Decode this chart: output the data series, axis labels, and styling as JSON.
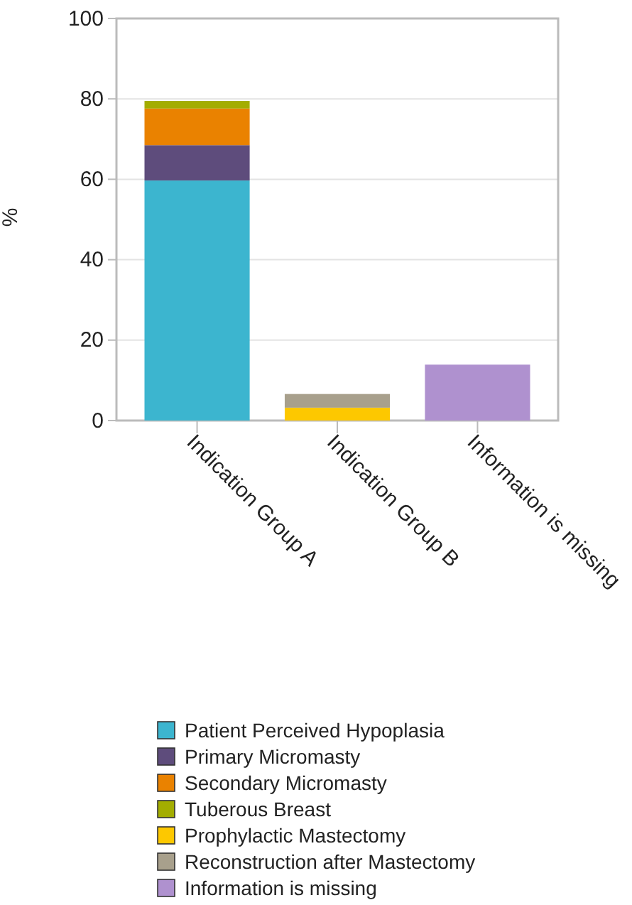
{
  "chart_data": {
    "type": "bar",
    "stacked": true,
    "ylabel": "%",
    "categories": [
      "Indication Group A",
      "Indication Group B",
      "Information is missing"
    ],
    "ylim": [
      0,
      100
    ],
    "yticks": [
      0,
      20,
      40,
      60,
      80,
      100
    ],
    "grid": "y",
    "legend": "bottom",
    "series": [
      {
        "name": "Patient Perceived Hypoplasia",
        "color": "#3cb5cf",
        "values": [
          59.7,
          null,
          null
        ]
      },
      {
        "name": "Primary Micromasty",
        "color": "#5e4c7c",
        "values": [
          8.8,
          null,
          null
        ]
      },
      {
        "name": "Secondary Micromasty",
        "color": "#ea8200",
        "values": [
          9.1,
          null,
          null
        ]
      },
      {
        "name": "Tuberous Breast",
        "color": "#a3ad00",
        "values": [
          1.9,
          null,
          null
        ]
      },
      {
        "name": "Prophylactic Mastectomy",
        "color": "#fdc800",
        "values": [
          null,
          3.2,
          null
        ]
      },
      {
        "name": "Reconstruction after Mastectomy",
        "color": "#a8a08c",
        "values": [
          null,
          3.4,
          null
        ]
      },
      {
        "name": "Information is missing",
        "color": "#af91cf",
        "values": [
          null,
          null,
          13.9
        ]
      }
    ]
  }
}
